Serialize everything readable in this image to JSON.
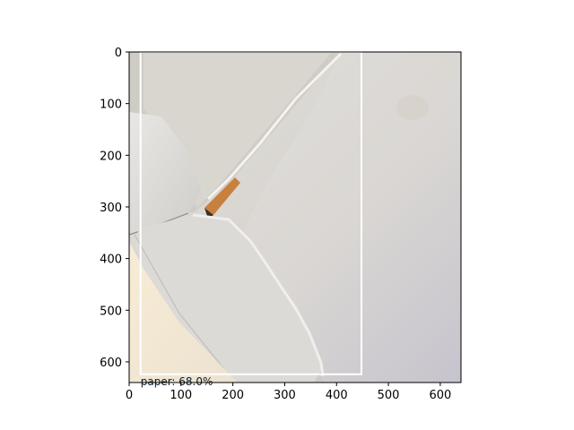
{
  "figure": {
    "x_ticks": [
      "0",
      "100",
      "200",
      "300",
      "400",
      "500",
      "600"
    ],
    "y_ticks": [
      "0",
      "100",
      "200",
      "300",
      "400",
      "500",
      "600"
    ],
    "x_tick_values": [
      0,
      100,
      200,
      300,
      400,
      500,
      600
    ],
    "y_tick_values": [
      0,
      100,
      200,
      300,
      400,
      500,
      600
    ],
    "image_extent": {
      "width": 640,
      "height": 640
    }
  },
  "detection": {
    "label": "paper: 68.0%",
    "box": {
      "x0": 22,
      "y0": 0,
      "x1": 448,
      "y1": 624
    },
    "color": "#ffffff"
  },
  "photo": {
    "description_colors": {
      "background": "#d9d6d0",
      "left_light": "#f2e8d4",
      "right_shadow": "#c9c8cf",
      "pencil_tip": "#c87a3a"
    }
  }
}
